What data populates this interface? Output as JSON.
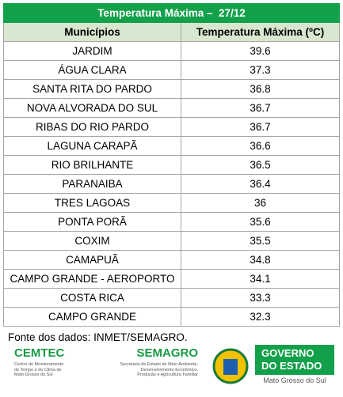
{
  "table": {
    "title": "Temperatura Máxima –  27/12",
    "header": [
      "Municípios",
      "Temperatura Máxima (ºC)"
    ],
    "rows": [
      [
        "JARDIM",
        39.6
      ],
      [
        "ÁGUA CLARA",
        37.3
      ],
      [
        "SANTA RITA DO PARDO",
        36.8
      ],
      [
        "NOVA ALVORADA DO SUL",
        36.7
      ],
      [
        "RIBAS DO RIO PARDO",
        36.7
      ],
      [
        "LAGUNA CARAPÃ",
        36.6
      ],
      [
        "RIO BRILHANTE",
        36.5
      ],
      [
        "PARANAIBA",
        36.4
      ],
      [
        "TRES LAGOAS",
        36.0
      ],
      [
        "PONTA PORÃ",
        35.6
      ],
      [
        "COXIM",
        35.5
      ],
      [
        "CAMAPUÃ",
        34.8
      ],
      [
        "CAMPO GRANDE - AEROPORTO",
        34.1
      ],
      [
        "COSTA RICA",
        33.3
      ],
      [
        "CAMPO GRANDE",
        32.3
      ]
    ]
  },
  "source": "Fonte dos dados: INMET/SEMAGRO.",
  "logos": {
    "cemtec": {
      "name": "CEMTEC",
      "lines": [
        "Centro de Monitoramento",
        "do Tempo e do Clima de",
        "Mato Grosso do Sul"
      ]
    },
    "semagro": {
      "name": "SEMAGRO",
      "lines": [
        "Secretaria de Estado de Meio Ambiente,",
        "Desenvolvimento Econômico,",
        "Produção e Agricultura Familiar"
      ]
    },
    "governo": {
      "lines": [
        "GOVERNO",
        "DO ESTADO"
      ],
      "sub": "Mato Grosso do Sul"
    }
  }
}
